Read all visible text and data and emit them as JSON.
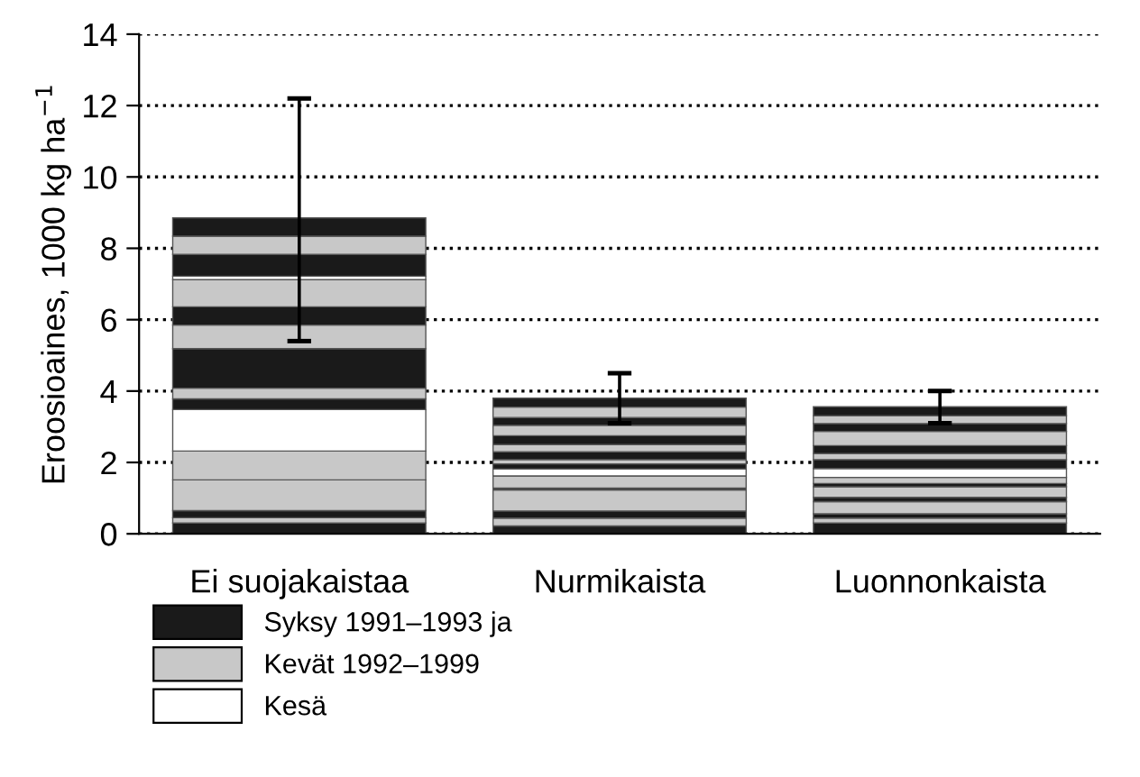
{
  "chart_data": {
    "type": "bar",
    "stacked": true,
    "ylabel": "Eroosioaines, 1000 kg ha$^{−1}$",
    "categories": [
      "Ei suojakaistaa",
      "Nurmikaista",
      "Luonnonkaista"
    ],
    "ylim": [
      0,
      14
    ],
    "yticks": [
      0,
      2,
      4,
      6,
      8,
      10,
      12,
      14
    ],
    "grid": "y",
    "legend": "bottom",
    "line_style": "dotted",
    "series": [
      {
        "name": "Syksy 1991–1993 ja",
        "color": "#1a1a1a",
        "values": [
          null,
          null,
          null
        ]
      },
      {
        "name": "Kevät 1992–1999",
        "color": "#c8c8c8",
        "values": [
          null,
          null,
          null
        ]
      },
      {
        "name": "Kesä",
        "color": "#ffffff",
        "values": [
          null,
          null,
          null
        ]
      },
      {
        "colors": [
          "#1a1a1a",
          "#1a1a1a",
          "#1a1a1a"
        ],
        "values": [
          0.3,
          0.22,
          0.3
        ]
      },
      {
        "colors": [
          "#c8c8c8",
          "#c8c8c8",
          "#c8c8c8"
        ],
        "values": [
          0.15,
          0.22,
          0.14
        ]
      },
      {
        "colors": [
          "#1a1a1a",
          "#1a1a1a",
          "#1a1a1a"
        ],
        "values": [
          0.2,
          0.2,
          0.12
        ]
      },
      {
        "colors": [
          "#c8c8c8",
          "#c8c8c8",
          "#c8c8c8"
        ],
        "values": [
          0.86,
          0.59,
          0.34
        ]
      },
      {
        "colors": [
          "#c8c8c8",
          "#1a1a1a",
          "#1a1a1a"
        ],
        "values": [
          0.81,
          0.05,
          0.12
        ]
      },
      {
        "colors": [
          "#ffffff",
          "#c8c8c8",
          "#c8c8c8"
        ],
        "values": [
          1.16,
          0.34,
          0.3
        ]
      },
      {
        "colors": [
          "#1a1a1a",
          "#ffffff",
          "#1a1a1a"
        ],
        "values": [
          0.3,
          0.2,
          0.09
        ]
      },
      {
        "colors": [
          "#c8c8c8",
          "#1a1a1a",
          "#c8c8c8"
        ],
        "values": [
          0.3,
          0.14,
          0.17
        ]
      },
      {
        "colors": [
          "#1a1a1a",
          "#c8c8c8",
          "#ffffff"
        ],
        "values": [
          1.11,
          0.12,
          0.25
        ]
      },
      {
        "colors": [
          "#c8c8c8",
          "#1a1a1a",
          "#1a1a1a"
        ],
        "values": [
          0.66,
          0.22,
          0.25
        ]
      },
      {
        "colors": [
          "#1a1a1a",
          "#c8c8c8",
          "#c8c8c8"
        ],
        "values": [
          0.51,
          0.2,
          0.17
        ]
      },
      {
        "colors": [
          "#c8c8c8",
          "#1a1a1a",
          "#1a1a1a"
        ],
        "values": [
          0.76,
          0.25,
          0.22
        ]
      },
      {
        "colors": [
          "#ffffff",
          "#c8c8c8",
          "#c8c8c8"
        ],
        "values": [
          0.1,
          0.29,
          0.4
        ]
      },
      {
        "colors": [
          "#1a1a1a",
          "#1a1a1a",
          "#1a1a1a"
        ],
        "values": [
          0.61,
          0.22,
          0.22
        ]
      },
      {
        "colors": [
          "#c8c8c8",
          "#c8c8c8",
          "#c8c8c8"
        ],
        "values": [
          0.51,
          0.29,
          0.22
        ]
      },
      {
        "colors": [
          "#1a1a1a",
          "#1a1a1a",
          "#1a1a1a"
        ],
        "values": [
          0.51,
          0.25,
          0.25
        ],
        "errors": [
          [
            5.4,
            12.2
          ],
          [
            3.1,
            4.5
          ],
          [
            3.1,
            4.0
          ]
        ]
      }
    ]
  }
}
